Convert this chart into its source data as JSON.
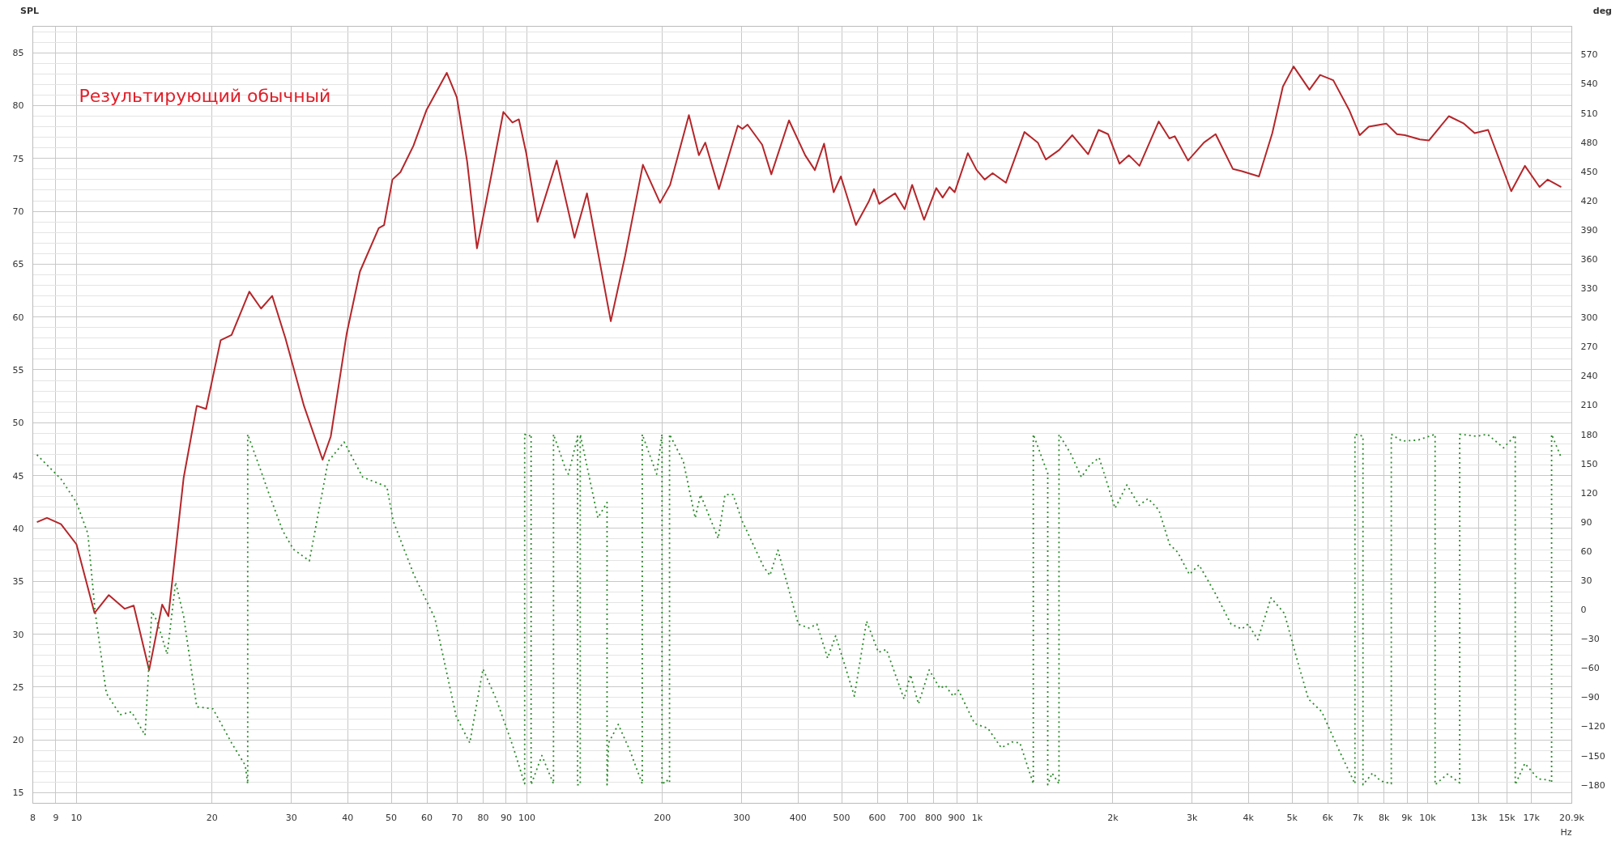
{
  "chart_data": {
    "type": "line",
    "ylabel": "SPL",
    "y2label": "deg",
    "annotations": [
      "Результирующий обычный"
    ],
    "log": "x",
    "grid": true,
    "xlim": [
      8,
      20900
    ],
    "xticks": [
      8,
      9,
      10,
      20,
      30,
      40,
      50,
      60,
      70,
      80,
      90,
      100,
      200,
      300,
      400,
      500,
      600,
      700,
      800,
      900,
      {
        "value": 1000,
        "label": "1k"
      },
      {
        "value": 2000,
        "label": "2k"
      },
      {
        "value": 3000,
        "label": "3k"
      },
      {
        "value": 4000,
        "label": "4k"
      },
      {
        "value": 5000,
        "label": "5k"
      },
      {
        "value": 6000,
        "label": "6k"
      },
      {
        "value": 7000,
        "label": "7k"
      },
      {
        "value": 8000,
        "label": "8k"
      },
      {
        "value": 9000,
        "label": "9k"
      },
      {
        "value": 10000,
        "label": "10k"
      },
      {
        "value": 13000,
        "label": "13k"
      },
      {
        "value": 15000,
        "label": "15k"
      },
      {
        "value": 17000,
        "label": "17k"
      },
      {
        "value": 20900,
        "label": "20.9k"
      }
    ],
    "xlabel": "Hz",
    "ylim": [
      14,
      87.5
    ],
    "yticks": [
      15,
      20,
      25,
      30,
      35,
      40,
      45,
      50,
      55,
      60,
      65,
      70,
      75,
      80,
      85
    ],
    "y2lim": [
      -199,
      599
    ],
    "y2ticks": [
      -180,
      -150,
      -120,
      -90,
      -60,
      -30,
      0,
      30,
      60,
      90,
      120,
      150,
      180,
      210,
      240,
      270,
      300,
      330,
      360,
      390,
      420,
      450,
      480,
      510,
      540,
      570
    ],
    "series": [
      {
        "color": "#b5262a",
        "line_style": "solid",
        "x": [
          8.17,
          8.6,
          9.24,
          10.0,
          10.97,
          11.8,
          12.8,
          13.4,
          14.5,
          15.5,
          16.0,
          17.3,
          18.5,
          19.4,
          20.9,
          22.1,
          24.2,
          25.7,
          27.2,
          29.1,
          32.0,
          35.2,
          36.7,
          39.8,
          42.6,
          46.9,
          48.2,
          50.3,
          52.4,
          56.0,
          59.9,
          66.4,
          69.9,
          73.7,
          77.5,
          83.3,
          88.7,
          92.9,
          96.0,
          99.7,
          105.6,
          116.5,
          127.6,
          136.0,
          153.6,
          165.3,
          181,
          197.6,
          208,
          229,
          241,
          249,
          267,
          294,
          301,
          309,
          333,
          349,
          382,
          415,
          436,
          457,
          480,
          498,
          538,
          574,
          590,
          606,
          657,
          690,
          717,
          762,
          811,
          838,
          868,
          891,
          953,
          997,
          1039,
          1082,
          1158,
          1273,
          1363,
          1420,
          1520,
          1626,
          1763,
          1860,
          1952,
          2070,
          2172,
          2292,
          2529,
          2671,
          2745,
          2938,
          3187,
          3383,
          3696,
          3868,
          4223,
          4520,
          4772,
          5040,
          5465,
          5772,
          6173,
          6693,
          7069,
          7402,
          8093,
          8547,
          8903,
          9609,
          10065,
          11144,
          12037,
          12720,
          13625,
          15335,
          16443,
          17722,
          18468,
          19800
        ],
        "values": [
          40.6,
          41.0,
          40.4,
          38.5,
          32.0,
          33.7,
          32.4,
          32.7,
          26.6,
          32.8,
          31.7,
          44.8,
          51.6,
          51.3,
          57.8,
          58.3,
          62.4,
          60.8,
          62.0,
          58.0,
          51.6,
          46.5,
          48.7,
          58.4,
          64.3,
          68.4,
          68.7,
          73.0,
          73.7,
          76.2,
          79.6,
          83.1,
          80.8,
          74.7,
          66.5,
          73.3,
          79.4,
          78.4,
          78.7,
          75.5,
          69.0,
          74.8,
          67.5,
          71.7,
          59.6,
          65.8,
          74.4,
          70.8,
          72.5,
          79.1,
          75.3,
          76.5,
          72.1,
          78.1,
          77.8,
          78.2,
          76.3,
          73.5,
          78.6,
          75.3,
          73.9,
          76.4,
          71.8,
          73.3,
          68.7,
          70.9,
          72.1,
          70.7,
          71.7,
          70.2,
          72.5,
          69.2,
          72.2,
          71.3,
          72.3,
          71.8,
          75.5,
          73.9,
          73.0,
          73.6,
          72.7,
          77.5,
          76.5,
          74.9,
          75.8,
          77.2,
          75.4,
          77.7,
          77.3,
          74.5,
          75.3,
          74.3,
          78.5,
          76.9,
          77.1,
          74.8,
          76.5,
          77.3,
          74.0,
          73.8,
          73.3,
          77.4,
          81.8,
          83.7,
          81.5,
          82.9,
          82.4,
          79.6,
          77.2,
          78.0,
          78.3,
          77.3,
          77.2,
          76.8,
          76.7,
          79.0,
          78.3,
          77.4,
          77.7,
          71.9,
          74.3,
          72.3,
          73.0,
          72.3
        ]
      },
      {
        "color": "#2a8a2a",
        "line_style": "dotted",
        "axis": "y2",
        "x": [
          8.17,
          9.24,
          10.0,
          10.6,
          11.0,
          11.65,
          12.5,
          13.25,
          14.2,
          14.7,
          15.1,
          15.9,
          16.6,
          17.3,
          18.5,
          20.1,
          22.1,
          23.7,
          24.0,
          24.0,
          25.7,
          26.8,
          28.7,
          30.3,
          32.9,
          36.2,
          39.3,
          43.2,
          48.9,
          50.5,
          56.1,
          62.5,
          69.7,
          74.7,
          79.9,
          85.5,
          92.9,
          98.9,
          98.9,
          101.1,
          102.2,
          102.2,
          108,
          114.6,
          114.6,
          122.4,
          123.7,
          128.9,
          129.6,
          129.6,
          131.4,
          131.4,
          143.8,
          150.7,
          150.7,
          151.9,
          159.6,
          169.4,
          180.4,
          180.4,
          194.2,
          199.6,
          199.6,
          204,
          207.4,
          207.4,
          222.6,
          236.5,
          243,
          266,
          275.4,
          287,
          300.6,
          335.4,
          346.5,
          361,
          400.6,
          423,
          440.6,
          465.4,
          484.9,
          533.6,
          568,
          603.4,
          628.6,
          688,
          710.9,
          740.6,
          782.2,
          826,
          849,
          884.4,
          908.9,
          986.5,
          1056,
          1131,
          1195,
          1244,
          1332,
          1332,
          1407,
          1434,
          1434,
          1466,
          1519,
          1519,
          1613,
          1703,
          1775,
          1865,
          2023,
          2149,
          2288,
          2396,
          2532,
          2673,
          2785,
          2958,
          3107,
          3373,
          3661,
          3866,
          3994,
          4196,
          4491,
          4809,
          5149,
          5438,
          5821,
          6321,
          6897,
          6897,
          7047,
          7186,
          7186,
          7546,
          7862,
          8305,
          8305,
          8770,
          9520,
          10390,
          10390,
          11065,
          11784,
          11784,
          12853,
          13580,
          14744,
          15652,
          15652,
          16440,
          17604,
          18596,
          18849,
          18849,
          19800
        ],
        "values": [
          159,
          134,
          110,
          78,
          -2,
          -86,
          -108,
          -105,
          -129,
          -2,
          -12,
          -46,
          28,
          -7,
          -100,
          -102,
          -137,
          -160,
          -179,
          180,
          142,
          118,
          81,
          62,
          50,
          152,
          172,
          136,
          126,
          91,
          36,
          -9,
          -110,
          -137,
          -61,
          -92,
          -139,
          -179,
          180,
          178,
          180,
          -180,
          -150,
          -179,
          180,
          142,
          139,
          173,
          178,
          -180,
          -180,
          180,
          94,
          110,
          -180,
          -137,
          -118,
          -145,
          -179,
          180,
          139,
          180,
          -180,
          -175,
          -178,
          180,
          152,
          94,
          118,
          73,
          118,
          118,
          91,
          44,
          35,
          61,
          -15,
          -19,
          -15,
          -50,
          -27,
          -89,
          -12,
          -44,
          -41,
          -92,
          -67,
          -97,
          -62,
          -81,
          -78,
          -89,
          -83,
          -117,
          -122,
          -142,
          -136,
          -137,
          -179,
          180,
          150,
          140,
          -180,
          -168,
          -179,
          180,
          160,
          136,
          148,
          156,
          104,
          128,
          107,
          114,
          102,
          67,
          59,
          36,
          46,
          17,
          -15,
          -20,
          -15,
          -31,
          12,
          -4,
          -54,
          -92,
          -105,
          -142,
          -179,
          180,
          179,
          178,
          -180,
          -168,
          -176,
          -179,
          180,
          173,
          174,
          180,
          -180,
          -169,
          -178,
          180,
          178,
          180,
          166,
          179,
          -180,
          -158,
          -174,
          -175,
          -178,
          180,
          156
        ]
      }
    ]
  }
}
